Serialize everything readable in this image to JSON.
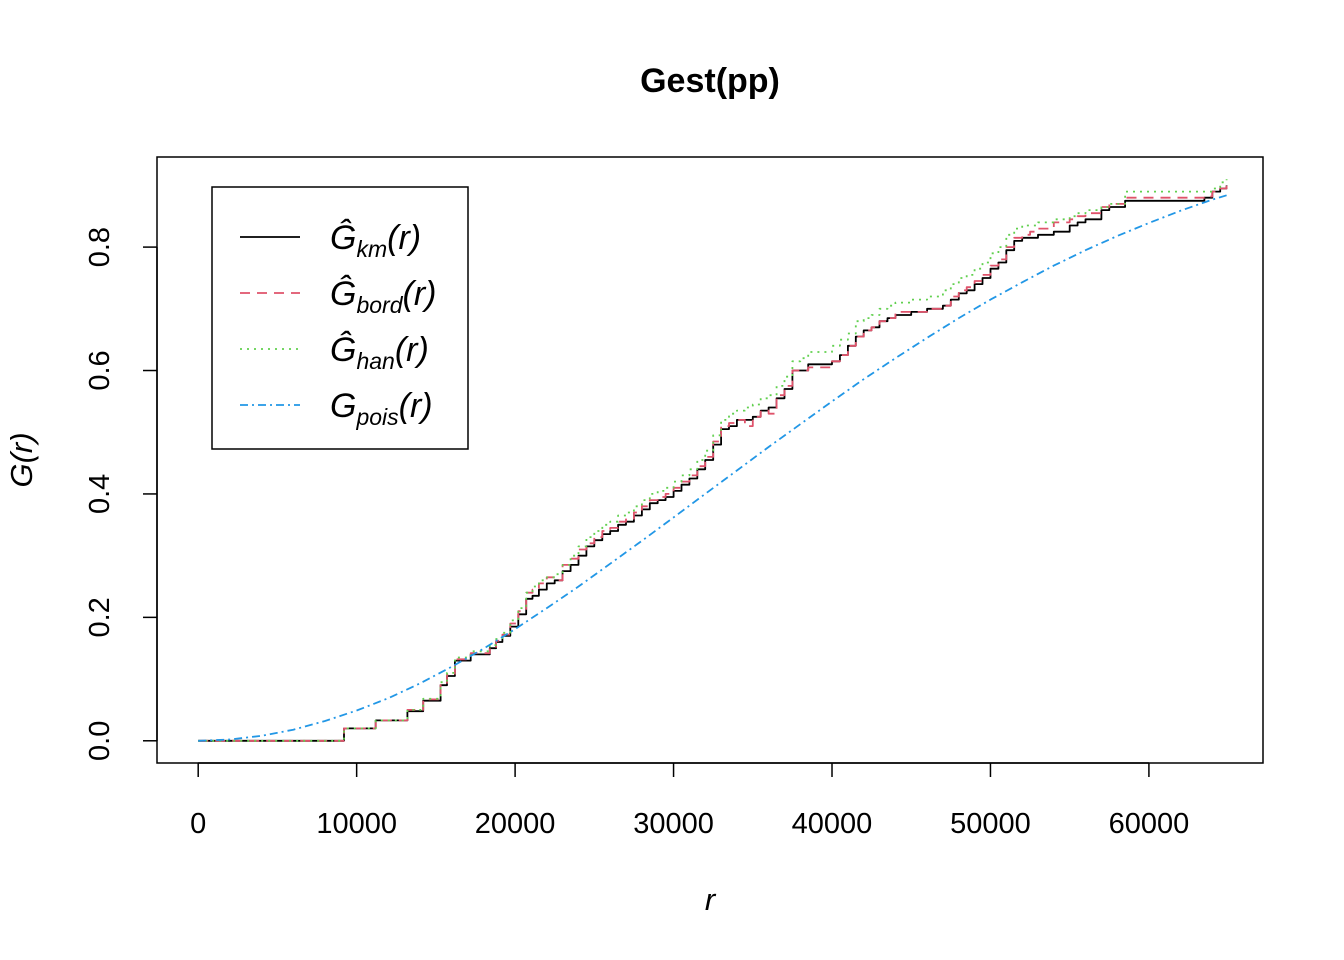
{
  "chart_data": {
    "type": "line",
    "title": "Gest(pp)",
    "xlabel": "r",
    "ylabel": "G(r)",
    "xlim": [
      -2600,
      67200
    ],
    "ylim": [
      -0.036,
      0.946
    ],
    "xticks": [
      0,
      10000,
      20000,
      30000,
      40000,
      50000,
      60000
    ],
    "yticks": [
      0.0,
      0.2,
      0.4,
      0.6,
      0.8
    ],
    "xtick_labels": [
      "0",
      "10000",
      "20000",
      "30000",
      "40000",
      "50000",
      "60000"
    ],
    "ytick_labels": [
      "0.0",
      "0.2",
      "0.4",
      "0.6",
      "0.8"
    ],
    "grid": false,
    "legend_position": "top-left",
    "series": [
      {
        "name": "Ĝkm(r)",
        "base": "Ĝ",
        "sub": "km",
        "arg": "(r)",
        "color": "#000000",
        "dash": "",
        "step": true,
        "x": [
          0,
          9200,
          10800,
          11200,
          12700,
          13200,
          14200,
          14700,
          15300,
          15700,
          16200,
          16700,
          17200,
          17800,
          18400,
          18800,
          19200,
          19700,
          20200,
          20700,
          21100,
          21500,
          22000,
          22500,
          23000,
          23500,
          24000,
          24500,
          25000,
          25500,
          26000,
          26500,
          27000,
          27500,
          28000,
          28500,
          29000,
          29500,
          30000,
          30500,
          31000,
          31500,
          32000,
          32500,
          33000,
          33500,
          34000,
          34500,
          35000,
          35500,
          36000,
          36500,
          37000,
          37500,
          38000,
          38500,
          39000,
          39500,
          40000,
          40500,
          41000,
          41500,
          42000,
          42500,
          43000,
          43500,
          44000,
          44500,
          45000,
          45500,
          46000,
          46500,
          47000,
          47500,
          48000,
          48500,
          49000,
          49500,
          50000,
          50500,
          51000,
          51500,
          52000,
          52500,
          53000,
          54000,
          55000,
          55500,
          56000,
          57000,
          57500,
          58500,
          63500,
          64000,
          64500,
          64900
        ],
        "y": [
          0,
          0.02,
          0.02,
          0.033,
          0.033,
          0.048,
          0.065,
          0.065,
          0.09,
          0.105,
          0.13,
          0.13,
          0.14,
          0.14,
          0.15,
          0.16,
          0.17,
          0.185,
          0.205,
          0.23,
          0.235,
          0.245,
          0.255,
          0.26,
          0.275,
          0.285,
          0.3,
          0.315,
          0.325,
          0.335,
          0.34,
          0.35,
          0.355,
          0.365,
          0.375,
          0.385,
          0.39,
          0.395,
          0.405,
          0.415,
          0.425,
          0.44,
          0.455,
          0.48,
          0.505,
          0.51,
          0.52,
          0.52,
          0.525,
          0.535,
          0.54,
          0.555,
          0.57,
          0.6,
          0.6,
          0.61,
          0.61,
          0.61,
          0.615,
          0.625,
          0.64,
          0.655,
          0.665,
          0.67,
          0.68,
          0.685,
          0.69,
          0.69,
          0.695,
          0.695,
          0.7,
          0.7,
          0.705,
          0.715,
          0.725,
          0.73,
          0.74,
          0.75,
          0.765,
          0.775,
          0.795,
          0.81,
          0.815,
          0.815,
          0.82,
          0.825,
          0.835,
          0.84,
          0.845,
          0.86,
          0.865,
          0.875,
          0.88,
          0.89,
          0.895,
          0.9
        ]
      },
      {
        "name": "Ĝbord(r)",
        "base": "Ĝ",
        "sub": "bord",
        "arg": "(r)",
        "color": "#DF536B",
        "dash": "10,7",
        "step": true,
        "x": [
          0,
          9200,
          10800,
          11200,
          12700,
          13200,
          14200,
          14700,
          15300,
          15700,
          16200,
          16700,
          17200,
          17800,
          18400,
          18800,
          19200,
          19700,
          20200,
          20700,
          21100,
          21500,
          22000,
          22500,
          23000,
          23500,
          24000,
          24500,
          25000,
          25500,
          26000,
          26500,
          27000,
          27500,
          28000,
          28500,
          29000,
          29500,
          30000,
          30500,
          31000,
          31500,
          32000,
          32500,
          33000,
          33500,
          34000,
          34500,
          35000,
          35500,
          36000,
          36500,
          37000,
          37500,
          38000,
          38500,
          39000,
          39500,
          40000,
          40500,
          41000,
          41500,
          42000,
          42500,
          43000,
          43500,
          44000,
          44500,
          45000,
          45500,
          46000,
          46500,
          47000,
          47500,
          48000,
          48500,
          49000,
          49500,
          50000,
          50500,
          51000,
          51500,
          52000,
          52500,
          53000,
          54000,
          55000,
          55500,
          56000,
          57000,
          57500,
          58500,
          63500,
          64000,
          64500,
          64900
        ],
        "y": [
          0,
          0.02,
          0.02,
          0.033,
          0.033,
          0.05,
          0.067,
          0.067,
          0.092,
          0.107,
          0.132,
          0.132,
          0.142,
          0.142,
          0.152,
          0.162,
          0.172,
          0.19,
          0.21,
          0.24,
          0.245,
          0.255,
          0.265,
          0.26,
          0.285,
          0.295,
          0.31,
          0.32,
          0.33,
          0.34,
          0.345,
          0.355,
          0.36,
          0.37,
          0.38,
          0.39,
          0.395,
          0.4,
          0.41,
          0.42,
          0.43,
          0.445,
          0.46,
          0.485,
          0.51,
          0.515,
          0.52,
          0.51,
          0.525,
          0.535,
          0.53,
          0.56,
          0.575,
          0.6,
          0.6,
          0.605,
          0.605,
          0.605,
          0.615,
          0.625,
          0.64,
          0.655,
          0.665,
          0.67,
          0.68,
          0.685,
          0.695,
          0.695,
          0.695,
          0.695,
          0.7,
          0.7,
          0.705,
          0.72,
          0.73,
          0.735,
          0.745,
          0.755,
          0.77,
          0.78,
          0.8,
          0.815,
          0.82,
          0.825,
          0.83,
          0.84,
          0.845,
          0.85,
          0.855,
          0.865,
          0.87,
          0.88,
          0.882,
          0.89,
          0.895,
          0.905
        ]
      },
      {
        "name": "Ĝhan(r)",
        "base": "Ĝ",
        "sub": "han",
        "arg": "(r)",
        "color": "#61D04F",
        "dash": "2,5",
        "step": true,
        "x": [
          0,
          9200,
          10800,
          11200,
          12700,
          13200,
          14200,
          14700,
          15300,
          15700,
          16200,
          16700,
          17200,
          17800,
          18400,
          18800,
          19200,
          19700,
          20200,
          20700,
          21100,
          21500,
          22000,
          22500,
          23000,
          23500,
          24000,
          24500,
          25000,
          25500,
          26000,
          26500,
          27000,
          27500,
          28000,
          28500,
          29000,
          29500,
          30000,
          30500,
          31000,
          31500,
          32000,
          32500,
          33000,
          33500,
          34000,
          34500,
          35000,
          35500,
          36000,
          36500,
          37000,
          37500,
          38000,
          38500,
          39000,
          39500,
          40000,
          40500,
          41000,
          41500,
          42000,
          42500,
          43000,
          43500,
          44000,
          44500,
          45000,
          45500,
          46000,
          46500,
          47000,
          47500,
          48000,
          48500,
          49000,
          49500,
          50000,
          50500,
          51000,
          51500,
          52000,
          52500,
          53000,
          54000,
          55000,
          55500,
          56000,
          57000,
          57500,
          58500,
          63500,
          64000,
          64500,
          64900
        ],
        "y": [
          0,
          0.02,
          0.02,
          0.033,
          0.033,
          0.05,
          0.068,
          0.068,
          0.095,
          0.11,
          0.135,
          0.135,
          0.145,
          0.145,
          0.155,
          0.165,
          0.175,
          0.195,
          0.215,
          0.24,
          0.25,
          0.26,
          0.265,
          0.27,
          0.285,
          0.3,
          0.315,
          0.33,
          0.34,
          0.35,
          0.355,
          0.365,
          0.37,
          0.38,
          0.39,
          0.4,
          0.405,
          0.41,
          0.42,
          0.43,
          0.44,
          0.455,
          0.47,
          0.495,
          0.52,
          0.53,
          0.535,
          0.54,
          0.545,
          0.555,
          0.56,
          0.575,
          0.59,
          0.615,
          0.62,
          0.63,
          0.63,
          0.63,
          0.64,
          0.65,
          0.66,
          0.68,
          0.685,
          0.69,
          0.7,
          0.705,
          0.71,
          0.71,
          0.715,
          0.715,
          0.72,
          0.72,
          0.73,
          0.74,
          0.75,
          0.755,
          0.765,
          0.775,
          0.79,
          0.8,
          0.82,
          0.83,
          0.835,
          0.835,
          0.84,
          0.845,
          0.85,
          0.855,
          0.86,
          0.865,
          0.87,
          0.89,
          0.89,
          0.895,
          0.905,
          0.91
        ]
      },
      {
        "name": "Gpois(r)",
        "base": "G",
        "sub": "pois",
        "arg": "(r)",
        "color": "#2297E6",
        "dash": "8,4,2,4",
        "step": false,
        "x": [
          0,
          2000,
          4000,
          6000,
          8000,
          10000,
          12000,
          14000,
          16000,
          18000,
          20000,
          22000,
          24000,
          26000,
          28000,
          30000,
          32000,
          34000,
          36000,
          38000,
          40000,
          42000,
          44000,
          46000,
          48000,
          50000,
          52000,
          54000,
          56000,
          58000,
          60000,
          62000,
          64000,
          64900
        ],
        "y": [
          0,
          0.002,
          0.008,
          0.018,
          0.032,
          0.049,
          0.069,
          0.093,
          0.12,
          0.149,
          0.181,
          0.215,
          0.25,
          0.287,
          0.324,
          0.362,
          0.4,
          0.438,
          0.476,
          0.513,
          0.55,
          0.586,
          0.62,
          0.653,
          0.685,
          0.715,
          0.743,
          0.77,
          0.795,
          0.818,
          0.839,
          0.859,
          0.877,
          0.884
        ]
      }
    ]
  }
}
